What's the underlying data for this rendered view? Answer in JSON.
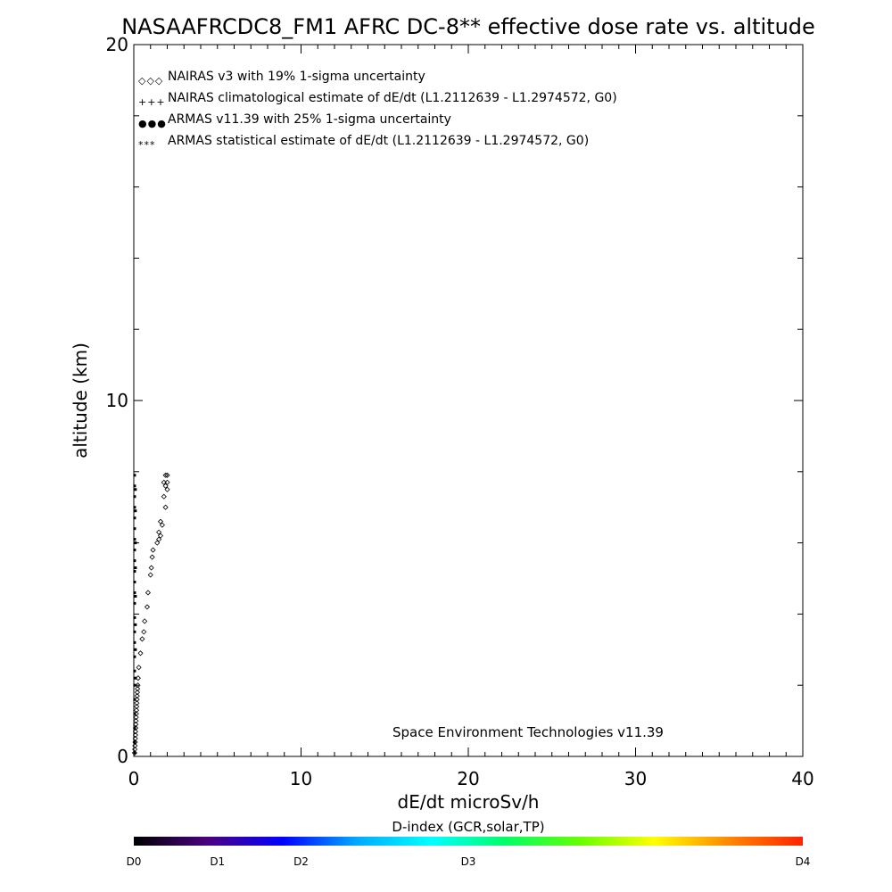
{
  "chart_data": {
    "type": "scatter",
    "title": "NASAAFRCDC8_FM1 AFRC DC-8** effective dose rate vs. altitude",
    "xlabel": "dE/dt microSv/h",
    "ylabel": "altitude (km)",
    "xlim": [
      0,
      40
    ],
    "ylim": [
      0,
      20
    ],
    "x_ticks": [
      "0",
      "10",
      "20",
      "30",
      "40"
    ],
    "y_ticks": [
      "0",
      "10",
      "20"
    ],
    "grid": false,
    "legend_position": "top-left",
    "legend": [
      {
        "symbol": "◇◇◇",
        "label": "NAIRAS v3 with 19% 1-sigma uncertainty",
        "color": "#000000"
      },
      {
        "symbol": "+++",
        "label": "NAIRAS climatological estimate of dE/dt (L1.2112639 - L1.2974572, G0)",
        "color": "#000000"
      },
      {
        "symbol": "●●●",
        "label": "ARMAS v11.39 with 25% 1-sigma uncertainty",
        "color": "#0033cc"
      },
      {
        "symbol": "***",
        "label": "ARMAS statistical estimate of dE/dt (L1.2112639 - L1.2974572, G0)",
        "color": "#000000"
      }
    ],
    "annotation": "Space Environment Technologies v11.39",
    "series": [
      {
        "name": "NAIRAS v3 with 19% 1-sigma uncertainty",
        "marker": "diamond",
        "color": "#000000",
        "points": [
          [
            0.05,
            0.1
          ],
          [
            0.06,
            0.2
          ],
          [
            0.07,
            0.3
          ],
          [
            0.08,
            0.4
          ],
          [
            0.09,
            0.5
          ],
          [
            0.1,
            0.6
          ],
          [
            0.1,
            0.7
          ],
          [
            0.11,
            0.8
          ],
          [
            0.12,
            0.9
          ],
          [
            0.13,
            1.0
          ],
          [
            0.14,
            1.1
          ],
          [
            0.15,
            1.2
          ],
          [
            0.16,
            1.3
          ],
          [
            0.17,
            1.4
          ],
          [
            0.18,
            1.5
          ],
          [
            0.19,
            1.6
          ],
          [
            0.2,
            1.7
          ],
          [
            0.21,
            1.8
          ],
          [
            0.22,
            1.9
          ],
          [
            0.24,
            2.0
          ],
          [
            0.26,
            2.2
          ],
          [
            0.3,
            2.5
          ],
          [
            0.4,
            2.9
          ],
          [
            0.5,
            3.3
          ],
          [
            0.6,
            3.5
          ],
          [
            0.65,
            3.8
          ],
          [
            0.8,
            4.2
          ],
          [
            0.85,
            4.6
          ],
          [
            1.0,
            5.1
          ],
          [
            1.05,
            5.3
          ],
          [
            1.1,
            5.6
          ],
          [
            1.15,
            5.8
          ],
          [
            1.4,
            6.0
          ],
          [
            1.5,
            6.1
          ],
          [
            1.6,
            6.2
          ],
          [
            1.5,
            6.3
          ],
          [
            1.7,
            6.5
          ],
          [
            1.6,
            6.6
          ],
          [
            1.9,
            7.0
          ],
          [
            1.8,
            7.3
          ],
          [
            2.0,
            7.5
          ],
          [
            1.9,
            7.6
          ],
          [
            1.8,
            7.7
          ],
          [
            2.0,
            7.7
          ],
          [
            1.9,
            7.9
          ],
          [
            2.0,
            7.9
          ]
        ]
      },
      {
        "name": "ARMAS statistical estimate of dE/dt (L1.2112639 - L1.2974572, G0)",
        "marker": "dot",
        "color": "#000000",
        "points": [
          [
            0.05,
            0.1
          ],
          [
            0.05,
            0.4
          ],
          [
            0.05,
            0.8
          ],
          [
            0.05,
            1.2
          ],
          [
            0.05,
            1.6
          ],
          [
            0.05,
            2.0
          ],
          [
            0.05,
            2.4
          ],
          [
            0.05,
            2.8
          ],
          [
            0.05,
            3.2
          ],
          [
            0.05,
            3.5
          ],
          [
            0.05,
            3.9
          ],
          [
            0.05,
            4.3
          ],
          [
            0.05,
            4.6
          ],
          [
            0.05,
            4.9
          ],
          [
            0.05,
            5.2
          ],
          [
            0.05,
            5.5
          ],
          [
            0.05,
            5.8
          ],
          [
            0.05,
            6.1
          ],
          [
            0.05,
            6.4
          ],
          [
            0.05,
            6.7
          ],
          [
            0.05,
            7.0
          ],
          [
            0.05,
            7.3
          ],
          [
            0.05,
            7.6
          ],
          [
            0.05,
            7.9
          ],
          [
            0.1,
            2.2
          ],
          [
            0.1,
            3.0
          ],
          [
            0.1,
            3.7
          ],
          [
            0.1,
            4.5
          ],
          [
            0.1,
            5.3
          ],
          [
            0.1,
            6.0
          ],
          [
            0.1,
            6.9
          ],
          [
            0.1,
            7.5
          ]
        ]
      }
    ]
  },
  "colorbar": {
    "title": "D-index (GCR,solar,TP)",
    "labels": [
      {
        "text": "D0",
        "frac": 0.0
      },
      {
        "text": "D1",
        "frac": 0.125
      },
      {
        "text": "D2",
        "frac": 0.25
      },
      {
        "text": "D3",
        "frac": 0.5
      },
      {
        "text": "D4",
        "frac": 1.0
      }
    ],
    "colors": [
      "#000000",
      "#4b0082",
      "#0000ff",
      "#00aaff",
      "#00ffff",
      "#00ff66",
      "#66ff00",
      "#ffff00",
      "#ff8800",
      "#ff2200"
    ]
  }
}
